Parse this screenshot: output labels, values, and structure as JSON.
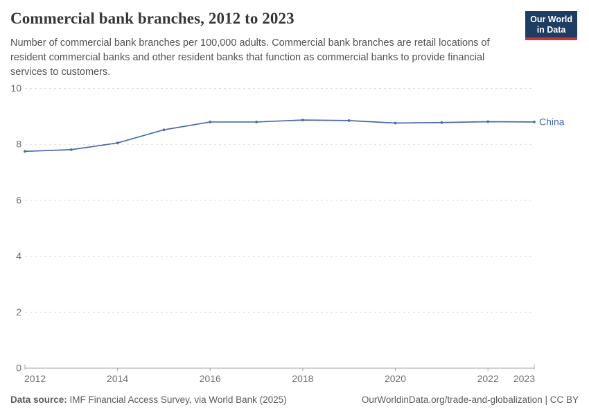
{
  "header": {
    "title": "Commercial bank branches, 2012 to 2023",
    "subtitle": "Number of commercial bank branches per 100,000 adults. Commercial bank branches are retail locations of resident commercial banks and other resident banks that function as commercial banks to provide financial services to customers.",
    "logo": {
      "line1": "Our World",
      "line2": "in Data",
      "bg": "#1d3d63",
      "red": "#cf3235"
    }
  },
  "chart_data": {
    "type": "line",
    "title": "Commercial bank branches, 2012 to 2023",
    "xlabel": "",
    "ylabel": "",
    "x": [
      2012,
      2013,
      2014,
      2015,
      2016,
      2017,
      2018,
      2019,
      2020,
      2021,
      2022,
      2023
    ],
    "series": [
      {
        "name": "China",
        "color": "#4a69a8",
        "values": [
          7.75,
          7.81,
          8.05,
          8.52,
          8.8,
          8.8,
          8.87,
          8.85,
          8.76,
          8.78,
          8.81,
          8.8
        ]
      }
    ],
    "xlim": [
      2012,
      2023
    ],
    "ylim": [
      0,
      10
    ],
    "yticks": [
      0,
      2,
      4,
      6,
      8,
      10
    ],
    "xticks": [
      2012,
      2014,
      2016,
      2018,
      2020,
      2022,
      2023
    ],
    "grid": "horizontal-dashed",
    "legend": "end-of-line-label",
    "colors": {
      "grid": "#dcdcdc",
      "axis": "#a3a3a3",
      "axis_label": "#6e6e6e"
    }
  },
  "footer": {
    "source_label": "Data source:",
    "source_text": " IMF Financial Access Survey, via World Bank (2025)",
    "cite_text": "OurWorldinData.org/trade-and-globalization | CC BY"
  }
}
